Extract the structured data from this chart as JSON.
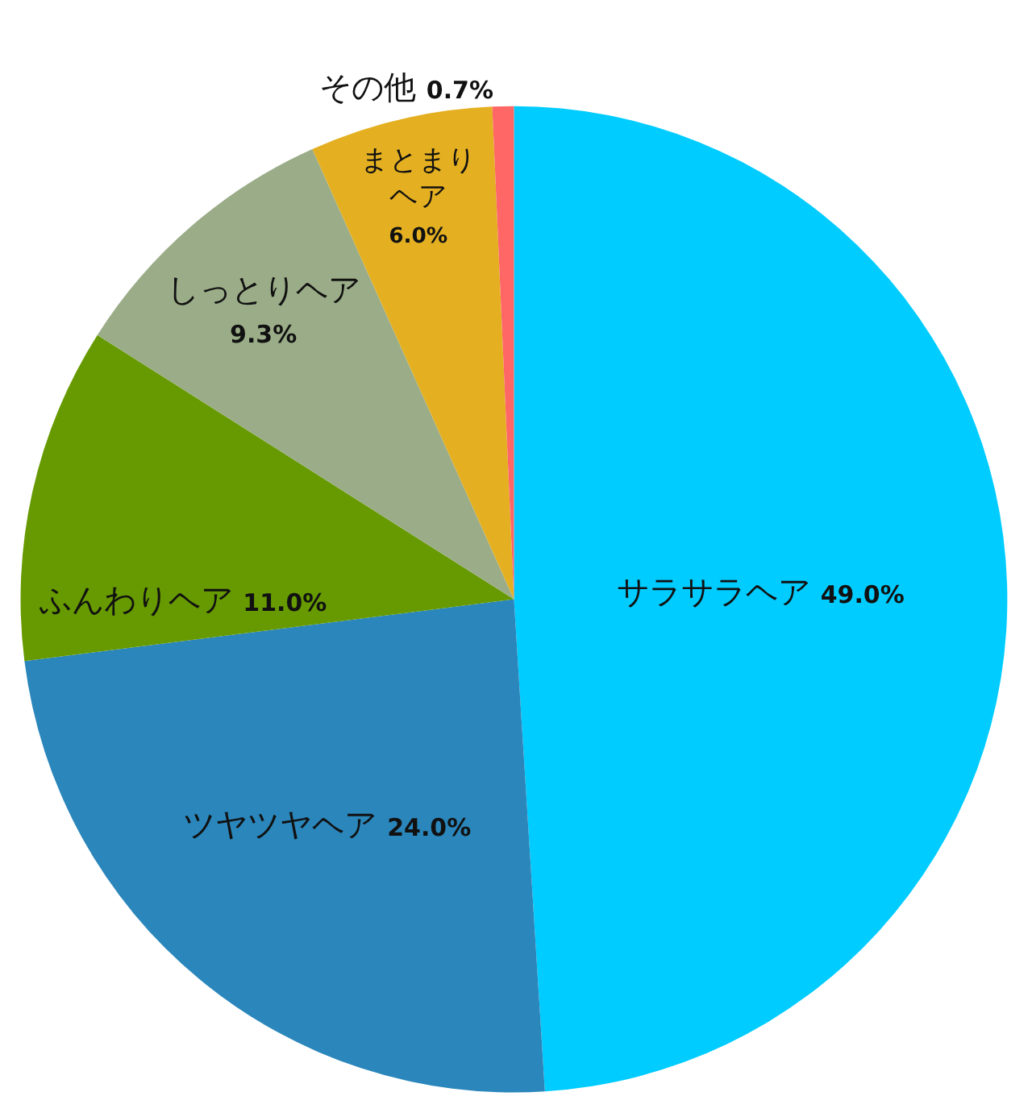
{
  "chart_data": {
    "type": "pie",
    "categories": [
      "サラサラヘア",
      "ツヤツヤヘア",
      "ふんわりヘア",
      "しっとりヘア",
      "まとまりヘア",
      "その他"
    ],
    "values": [
      49.0,
      24.0,
      11.0,
      9.3,
      6.0,
      0.7
    ],
    "value_labels": [
      "49.0%",
      "24.0%",
      "11.0%",
      "9.3%",
      "6.0%",
      "0.7%"
    ],
    "colors": [
      "#00ccff",
      "#2a86bb",
      "#669a00",
      "#9bad88",
      "#e4b022",
      "#ff6666"
    ]
  }
}
